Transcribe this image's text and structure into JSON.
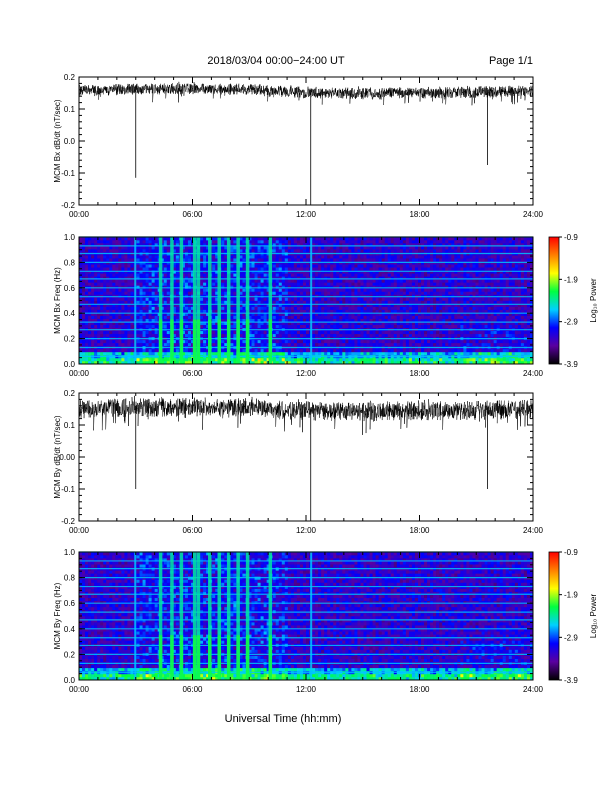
{
  "header": {
    "title": "2018/03/04  00:00−24:00 UT",
    "page": "Page 1/1"
  },
  "footer": {
    "xlabel": "Universal Time (hh:mm)"
  },
  "colorbar": {
    "label": "Log₁₀ Power",
    "ticks": [
      -0.9,
      -1.9,
      -2.9,
      -3.9
    ],
    "tick_labels": [
      "-0.9",
      "-1.9",
      "-2.9",
      "-3.9"
    ],
    "colors": [
      "#000000",
      "#5a00a0",
      "#0000ff",
      "#00d0ff",
      "#00ff40",
      "#ffff00",
      "#ff8000",
      "#ff0000"
    ]
  },
  "chart_data": [
    {
      "type": "line",
      "ylabel": "MCM Bx dB/dt (nT/sec)",
      "xlim": [
        0,
        24
      ],
      "ylim": [
        -0.2,
        0.2
      ],
      "x_tick_labels": [
        "00:00",
        "06:00",
        "12:00",
        "18:00",
        "24:00"
      ],
      "y_tick_labels": [
        "0.2",
        "0.1",
        "0.0",
        "-0.1",
        "-0.2"
      ],
      "y_ticks": [
        0.2,
        0.1,
        0.0,
        -0.1,
        -0.2
      ],
      "baseline": 0.16,
      "noise": 0.015,
      "spikes": [
        {
          "x": 3.0,
          "y": -0.115
        },
        {
          "x": 12.25,
          "y": -0.2
        },
        {
          "x": 21.6,
          "y": -0.075
        }
      ]
    },
    {
      "type": "heatmap",
      "ylabel": "MCM Bx Freq (Hz)",
      "xlim": [
        0,
        24
      ],
      "ylim": [
        0,
        1.0
      ],
      "x_tick_labels": [
        "00:00",
        "06:00",
        "12:00",
        "18:00",
        "24:00"
      ],
      "y_tick_labels": [
        "1.0",
        "0.8",
        "0.6",
        "0.4",
        "0.2",
        "0.0"
      ],
      "y_ticks": [
        1.0,
        0.8,
        0.6,
        0.4,
        0.2,
        0.0
      ],
      "zlim": [
        -3.9,
        -0.9
      ],
      "harmonic_lines_hz": [
        0.06,
        0.13,
        0.2,
        0.27,
        0.33,
        0.4,
        0.47,
        0.53,
        0.6,
        0.67,
        0.73,
        0.8,
        0.87,
        0.93,
        1.0
      ],
      "vertical_bands_hours": [
        3.0,
        4.3,
        4.9,
        5.4,
        6.1,
        6.3,
        6.9,
        7.4,
        7.9,
        8.4,
        8.9,
        10.1,
        12.3
      ]
    },
    {
      "type": "line",
      "ylabel": "MCM By dB/dt (nT/sec)",
      "xlim": [
        0,
        24
      ],
      "ylim": [
        -0.2,
        0.2
      ],
      "x_tick_labels": [
        "00:00",
        "06:00",
        "12:00",
        "18:00",
        "24:00"
      ],
      "y_tick_labels": [
        "0.2",
        "0.1",
        "0.00",
        "-0.1",
        "-0.2"
      ],
      "y_ticks": [
        0.2,
        0.1,
        0.0,
        -0.1,
        -0.2
      ],
      "baseline": 0.155,
      "noise": 0.025,
      "spikes": [
        {
          "x": 3.0,
          "y": -0.1
        },
        {
          "x": 12.25,
          "y": -0.2
        },
        {
          "x": 21.6,
          "y": -0.1
        }
      ]
    },
    {
      "type": "heatmap",
      "ylabel": "MCM By Freq (Hz)",
      "xlim": [
        0,
        24
      ],
      "ylim": [
        0,
        1.0
      ],
      "x_tick_labels": [
        "00:00",
        "06:00",
        "12:00",
        "18:00",
        "24:00"
      ],
      "y_tick_labels": [
        "1.0",
        "0.8",
        "0.6",
        "0.4",
        "0.2",
        "0.0"
      ],
      "y_ticks": [
        1.0,
        0.8,
        0.6,
        0.4,
        0.2,
        0.0
      ],
      "zlim": [
        -3.9,
        -0.9
      ],
      "harmonic_lines_hz": [
        0.06,
        0.13,
        0.2,
        0.27,
        0.33,
        0.4,
        0.47,
        0.53,
        0.6,
        0.67,
        0.73,
        0.8,
        0.87,
        0.93,
        1.0
      ],
      "vertical_bands_hours": [
        3.0,
        4.3,
        4.9,
        5.4,
        6.1,
        6.3,
        6.9,
        7.4,
        7.9,
        8.4,
        8.9,
        10.1,
        12.3
      ]
    }
  ]
}
